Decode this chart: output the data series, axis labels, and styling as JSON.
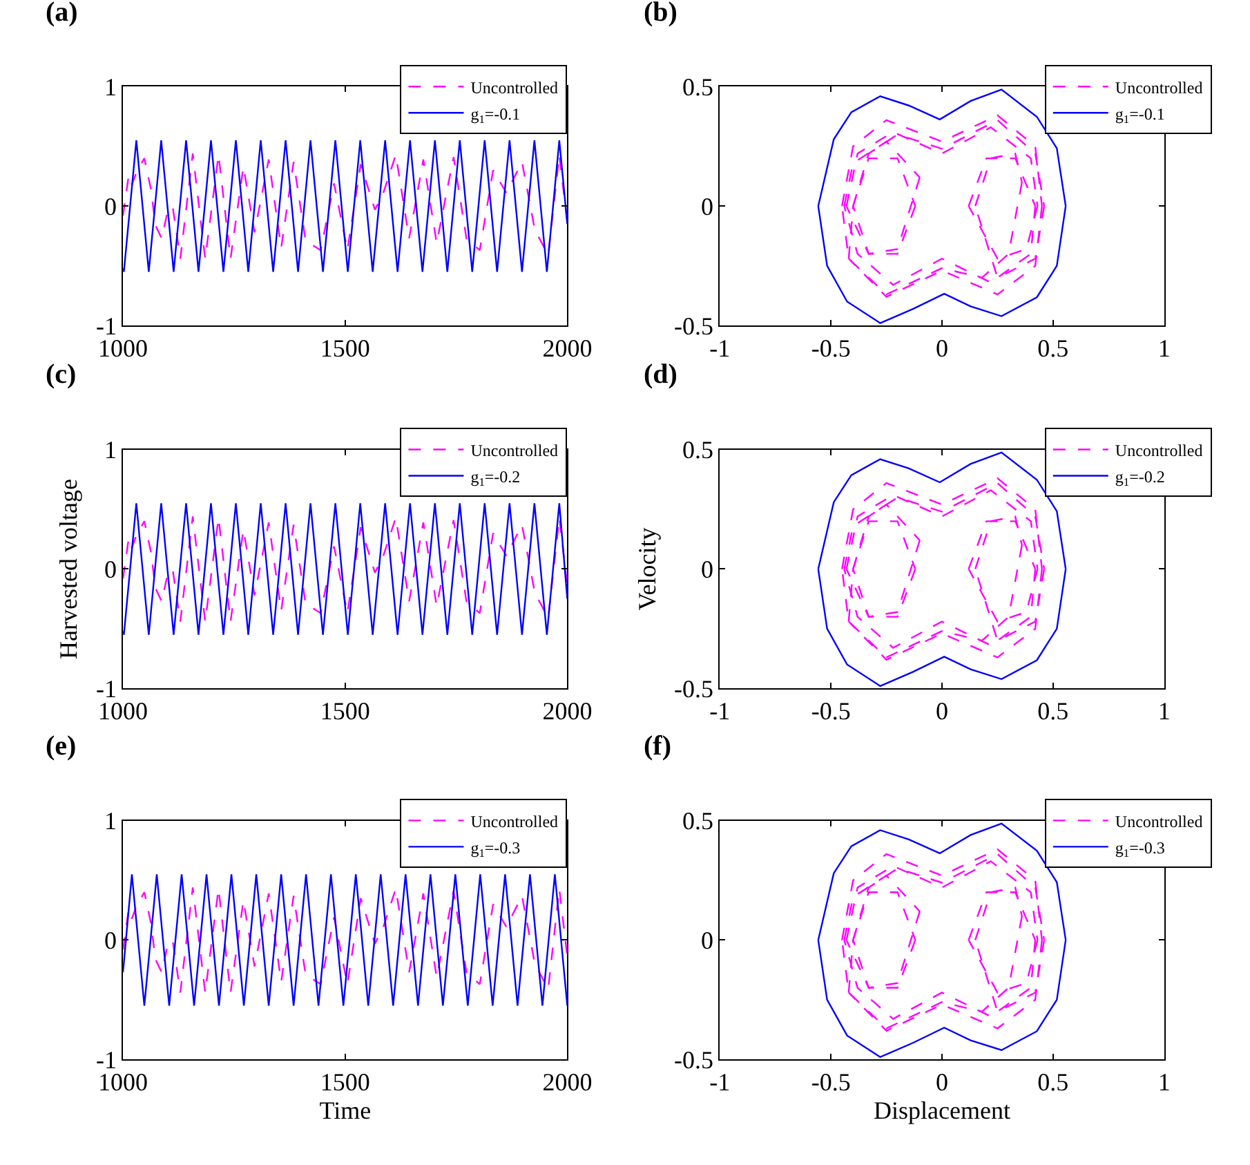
{
  "chart_data": [
    {
      "type": "line",
      "title": "(a)",
      "xlim": [
        1000,
        2000
      ],
      "xticks": [
        1000,
        1500,
        2000
      ],
      "ylim": [
        -1,
        1
      ],
      "yticks": [
        -1,
        0,
        1
      ],
      "legend": "top right",
      "grid": false,
      "series": [
        {
          "name": "Uncontrolled",
          "color": "#ff00ff",
          "line_style": "dashed",
          "x": [
            1000,
            1013,
            1020,
            1030,
            1048,
            1063,
            1073,
            1087,
            1102,
            1112,
            1129,
            1157,
            1185,
            1215,
            1242,
            1271,
            1296,
            1328,
            1356,
            1384,
            1411,
            1445,
            1475,
            1505,
            1535,
            1567,
            1586,
            1614,
            1644,
            1676,
            1706,
            1744,
            1773,
            1803,
            1833,
            1863,
            1898,
            1927,
            1957,
            1982,
            2000
          ],
          "values": [
            -0.08,
            0.26,
            0.18,
            0.28,
            0.4,
            0.14,
            -0.16,
            -0.27,
            -0.02,
            -0.01,
            -0.44,
            0.44,
            -0.44,
            0.43,
            -0.44,
            0.33,
            -0.22,
            0.39,
            -0.35,
            0.37,
            -0.29,
            -0.37,
            0.19,
            -0.37,
            0.35,
            -0.03,
            0.11,
            0.43,
            -0.27,
            0.39,
            -0.31,
            0.41,
            -0.27,
            -0.37,
            0.3,
            0.11,
            0.37,
            -0.2,
            -0.41,
            0.43,
            -0.14
          ]
        },
        {
          "name": "g$_{1}$=-0.1",
          "color": "#0000ff",
          "line_style": "solid",
          "x": [
            1000,
            1002,
            1030,
            1058,
            1086,
            1114,
            1142,
            1170,
            1198,
            1226,
            1254,
            1282,
            1310,
            1338,
            1366,
            1394,
            1422,
            1450,
            1478,
            1506,
            1534,
            1562,
            1590,
            1618,
            1646,
            1674,
            1702,
            1730,
            1758,
            1786,
            1814,
            1842,
            1870,
            1898,
            1926,
            1954,
            1982,
            2000
          ],
          "values": [
            -0.52,
            -0.55,
            0.55,
            -0.55,
            0.55,
            -0.55,
            0.55,
            -0.55,
            0.55,
            -0.55,
            0.55,
            -0.55,
            0.55,
            -0.55,
            0.55,
            -0.55,
            0.55,
            -0.55,
            0.55,
            -0.55,
            0.55,
            -0.55,
            0.55,
            -0.55,
            0.55,
            -0.55,
            0.55,
            -0.55,
            0.55,
            -0.55,
            0.55,
            -0.55,
            0.55,
            -0.55,
            0.55,
            -0.55,
            0.55,
            -0.15
          ]
        }
      ]
    },
    {
      "type": "line",
      "title": "(b)",
      "xlim": [
        -1,
        1
      ],
      "xticks": [
        -1,
        -0.5,
        0,
        0.5,
        1
      ],
      "ylim": [
        -0.5,
        0.5
      ],
      "yticks": [
        -0.5,
        0,
        0.5
      ],
      "legend": "top right",
      "grid": false,
      "series": [
        {
          "name": "Uncontrolled",
          "color": "#ff00ff",
          "line_style": "dashed",
          "x": [
            -0.45,
            -0.4,
            -0.25,
            0,
            0.25,
            0.42,
            0.45,
            0.42,
            0.25,
            0,
            -0.25,
            -0.42,
            -0.4,
            -0.33,
            -0.2,
            -0.12,
            -0.2,
            -0.33,
            -0.43,
            -0.38,
            -0.22,
            0,
            0.22,
            0.4,
            0.43,
            0.38,
            0.25,
            0.12,
            0.2,
            0.33,
            0.42,
            0.4,
            0.22,
            0,
            -0.22,
            -0.38,
            -0.44,
            -0.4,
            -0.25,
            -0.1,
            -0.2,
            -0.33,
            -0.4,
            -0.33,
            -0.2,
            0,
            0.25,
            0.42,
            0.46,
            0.42,
            0.25,
            0.15,
            0.22,
            0.33,
            0.36,
            0.3,
            0.18,
            0,
            -0.25,
            -0.42,
            -0.45
          ],
          "values": [
            0,
            0.25,
            0.36,
            0.27,
            0.38,
            0.25,
            0,
            -0.25,
            -0.37,
            -0.27,
            -0.38,
            -0.22,
            0,
            0.2,
            0.2,
            0,
            -0.2,
            -0.2,
            0,
            0.22,
            0.31,
            0.22,
            0.33,
            0.2,
            0,
            -0.18,
            -0.22,
            0,
            0.2,
            0.2,
            0,
            -0.2,
            -0.32,
            -0.22,
            -0.33,
            -0.2,
            0,
            0.18,
            0.27,
            0.12,
            -0.18,
            -0.2,
            0,
            0.22,
            0.3,
            0.24,
            0.36,
            0.22,
            0,
            -0.22,
            -0.3,
            0,
            0.2,
            0.22,
            0.1,
            -0.2,
            -0.3,
            -0.26,
            -0.37,
            -0.22,
            0
          ]
        },
        {
          "name": "g$_{1}$=-0.1",
          "color": "#0000ff",
          "line_style": "solid",
          "x": [
            -0.557,
            -0.487,
            -0.408,
            -0.278,
            -0.149,
            -0.01,
            0.129,
            0.268,
            0.427,
            0.517,
            0.557,
            0.517,
            0.427,
            0.268,
            0.129,
            0.01,
            -0.129,
            -0.278,
            -0.427,
            -0.517,
            -0.557
          ],
          "values": [
            0,
            0.28,
            0.393,
            0.46,
            0.421,
            0.363,
            0.44,
            0.488,
            0.374,
            0.242,
            0,
            -0.25,
            -0.382,
            -0.461,
            -0.42,
            -0.367,
            -0.43,
            -0.49,
            -0.4,
            -0.25,
            0
          ]
        }
      ]
    },
    {
      "type": "line",
      "title": "(c)",
      "ylabel": "Harvested voltage",
      "xlim": [
        1000,
        2000
      ],
      "xticks": [
        1000,
        1500,
        2000
      ],
      "ylim": [
        -1,
        1
      ],
      "yticks": [
        -1,
        0,
        1
      ],
      "legend": "top right",
      "grid": false,
      "series": [
        {
          "name": "Uncontrolled",
          "color": "#ff00ff",
          "line_style": "dashed",
          "x": [
            1000,
            1013,
            1020,
            1030,
            1048,
            1063,
            1073,
            1087,
            1102,
            1112,
            1129,
            1157,
            1185,
            1215,
            1242,
            1271,
            1296,
            1328,
            1356,
            1384,
            1411,
            1445,
            1475,
            1505,
            1535,
            1567,
            1586,
            1614,
            1644,
            1676,
            1706,
            1744,
            1773,
            1803,
            1833,
            1863,
            1898,
            1927,
            1957,
            1982,
            2000
          ],
          "values": [
            -0.08,
            0.26,
            0.18,
            0.28,
            0.4,
            0.14,
            -0.16,
            -0.27,
            -0.02,
            -0.01,
            -0.44,
            0.44,
            -0.44,
            0.43,
            -0.44,
            0.33,
            -0.22,
            0.39,
            -0.35,
            0.37,
            -0.29,
            -0.37,
            0.19,
            -0.37,
            0.35,
            -0.03,
            0.11,
            0.43,
            -0.27,
            0.39,
            -0.31,
            0.41,
            -0.27,
            -0.37,
            0.3,
            0.11,
            0.37,
            -0.2,
            -0.41,
            0.43,
            -0.14
          ]
        },
        {
          "name": "g$_{1}$=-0.2",
          "color": "#0000ff",
          "line_style": "solid",
          "x": [
            1000,
            1002,
            1030,
            1058,
            1086,
            1114,
            1142,
            1170,
            1198,
            1226,
            1254,
            1282,
            1310,
            1338,
            1366,
            1394,
            1422,
            1450,
            1478,
            1506,
            1534,
            1562,
            1590,
            1618,
            1646,
            1674,
            1702,
            1730,
            1758,
            1786,
            1814,
            1842,
            1870,
            1898,
            1926,
            1954,
            1982,
            2000
          ],
          "values": [
            -0.52,
            -0.55,
            0.55,
            -0.55,
            0.55,
            -0.55,
            0.55,
            -0.55,
            0.55,
            -0.55,
            0.55,
            -0.55,
            0.55,
            -0.55,
            0.55,
            -0.55,
            0.55,
            -0.55,
            0.55,
            -0.55,
            0.55,
            -0.55,
            0.55,
            -0.55,
            0.55,
            -0.55,
            0.55,
            -0.55,
            0.55,
            -0.55,
            0.55,
            -0.55,
            0.55,
            -0.55,
            0.55,
            -0.55,
            0.55,
            -0.25
          ]
        }
      ]
    },
    {
      "type": "line",
      "title": "(d)",
      "ylabel": "Velocity",
      "xlim": [
        -1,
        1
      ],
      "xticks": [
        -1,
        -0.5,
        0,
        0.5,
        1
      ],
      "ylim": [
        -0.5,
        0.5
      ],
      "yticks": [
        -0.5,
        0,
        0.5
      ],
      "legend": "top right",
      "grid": false,
      "series": [
        {
          "name": "Uncontrolled",
          "color": "#ff00ff",
          "line_style": "dashed",
          "x": [
            -0.45,
            -0.4,
            -0.25,
            0,
            0.25,
            0.42,
            0.45,
            0.42,
            0.25,
            0,
            -0.25,
            -0.42,
            -0.4,
            -0.33,
            -0.2,
            -0.12,
            -0.2,
            -0.33,
            -0.43,
            -0.38,
            -0.22,
            0,
            0.22,
            0.4,
            0.43,
            0.38,
            0.25,
            0.12,
            0.2,
            0.33,
            0.42,
            0.4,
            0.22,
            0,
            -0.22,
            -0.38,
            -0.44,
            -0.4,
            -0.25,
            -0.1,
            -0.2,
            -0.33,
            -0.4,
            -0.33,
            -0.2,
            0,
            0.25,
            0.42,
            0.46,
            0.42,
            0.25,
            0.15,
            0.22,
            0.33,
            0.36,
            0.3,
            0.18,
            0,
            -0.25,
            -0.42,
            -0.45
          ],
          "values": [
            0,
            0.25,
            0.36,
            0.27,
            0.38,
            0.25,
            0,
            -0.25,
            -0.37,
            -0.27,
            -0.38,
            -0.22,
            0,
            0.2,
            0.2,
            0,
            -0.2,
            -0.2,
            0,
            0.22,
            0.31,
            0.22,
            0.33,
            0.2,
            0,
            -0.18,
            -0.22,
            0,
            0.2,
            0.2,
            0,
            -0.2,
            -0.32,
            -0.22,
            -0.33,
            -0.2,
            0,
            0.18,
            0.27,
            0.12,
            -0.18,
            -0.2,
            0,
            0.22,
            0.3,
            0.24,
            0.36,
            0.22,
            0,
            -0.22,
            -0.3,
            0,
            0.2,
            0.22,
            0.1,
            -0.2,
            -0.3,
            -0.26,
            -0.37,
            -0.22,
            0
          ]
        },
        {
          "name": "g$_{1}$=-0.2",
          "color": "#0000ff",
          "line_style": "solid",
          "x": [
            -0.557,
            -0.487,
            -0.408,
            -0.278,
            -0.149,
            -0.01,
            0.129,
            0.268,
            0.427,
            0.517,
            0.557,
            0.517,
            0.427,
            0.268,
            0.129,
            0.01,
            -0.129,
            -0.278,
            -0.427,
            -0.517,
            -0.557
          ],
          "values": [
            0,
            0.28,
            0.393,
            0.46,
            0.421,
            0.363,
            0.44,
            0.488,
            0.374,
            0.242,
            0,
            -0.25,
            -0.382,
            -0.461,
            -0.42,
            -0.367,
            -0.43,
            -0.49,
            -0.4,
            -0.25,
            0
          ]
        }
      ]
    },
    {
      "type": "line",
      "title": "(e)",
      "xlabel": "Time",
      "xlim": [
        1000,
        2000
      ],
      "xticks": [
        1000,
        1500,
        2000
      ],
      "ylim": [
        -1,
        1
      ],
      "yticks": [
        -1,
        0,
        1
      ],
      "legend": "top right",
      "grid": false,
      "series": [
        {
          "name": "Uncontrolled",
          "color": "#ff00ff",
          "line_style": "dashed",
          "x": [
            1000,
            1013,
            1020,
            1030,
            1048,
            1063,
            1073,
            1087,
            1102,
            1112,
            1129,
            1157,
            1185,
            1215,
            1242,
            1271,
            1296,
            1328,
            1356,
            1384,
            1411,
            1445,
            1475,
            1505,
            1535,
            1567,
            1586,
            1614,
            1644,
            1676,
            1706,
            1744,
            1773,
            1803,
            1833,
            1863,
            1898,
            1927,
            1957,
            1982,
            2000
          ],
          "values": [
            -0.08,
            0.26,
            0.18,
            0.28,
            0.4,
            0.14,
            -0.16,
            -0.27,
            -0.02,
            -0.01,
            -0.44,
            0.44,
            -0.44,
            0.43,
            -0.44,
            0.33,
            -0.22,
            0.39,
            -0.35,
            0.37,
            -0.29,
            -0.37,
            0.19,
            -0.37,
            0.35,
            -0.03,
            0.11,
            0.43,
            -0.27,
            0.39,
            -0.31,
            0.41,
            -0.27,
            -0.37,
            0.3,
            0.11,
            0.37,
            -0.2,
            -0.41,
            0.43,
            -0.14
          ]
        },
        {
          "name": "g$_{1}$=-0.3",
          "color": "#0000ff",
          "line_style": "solid",
          "x": [
            1000,
            1020,
            1048,
            1076,
            1104,
            1132,
            1160,
            1188,
            1216,
            1244,
            1272,
            1300,
            1328,
            1356,
            1384,
            1412,
            1440,
            1468,
            1496,
            1524,
            1552,
            1580,
            1608,
            1636,
            1664,
            1692,
            1720,
            1748,
            1776,
            1804,
            1832,
            1860,
            1888,
            1916,
            1944,
            1972,
            2000
          ],
          "values": [
            -0.27,
            0.55,
            -0.55,
            0.55,
            -0.55,
            0.55,
            -0.55,
            0.55,
            -0.55,
            0.55,
            -0.55,
            0.55,
            -0.55,
            0.55,
            -0.55,
            0.55,
            -0.55,
            0.55,
            -0.55,
            0.55,
            -0.55,
            0.55,
            -0.55,
            0.55,
            -0.55,
            0.55,
            -0.55,
            0.55,
            -0.55,
            0.55,
            -0.55,
            0.55,
            -0.55,
            0.55,
            -0.55,
            0.55,
            -0.55
          ]
        }
      ]
    },
    {
      "type": "line",
      "title": "(f)",
      "xlabel": "Displacement",
      "xlim": [
        -1,
        1
      ],
      "xticks": [
        -1,
        -0.5,
        0,
        0.5,
        1
      ],
      "ylim": [
        -0.5,
        0.5
      ],
      "yticks": [
        -0.5,
        0,
        0.5
      ],
      "legend": "top right",
      "grid": false,
      "series": [
        {
          "name": "Uncontrolled",
          "color": "#ff00ff",
          "line_style": "dashed",
          "x": [
            -0.45,
            -0.4,
            -0.25,
            0,
            0.25,
            0.42,
            0.45,
            0.42,
            0.25,
            0,
            -0.25,
            -0.42,
            -0.4,
            -0.33,
            -0.2,
            -0.12,
            -0.2,
            -0.33,
            -0.43,
            -0.38,
            -0.22,
            0,
            0.22,
            0.4,
            0.43,
            0.38,
            0.25,
            0.12,
            0.2,
            0.33,
            0.42,
            0.4,
            0.22,
            0,
            -0.22,
            -0.38,
            -0.44,
            -0.4,
            -0.25,
            -0.1,
            -0.2,
            -0.33,
            -0.4,
            -0.33,
            -0.2,
            0,
            0.25,
            0.42,
            0.46,
            0.42,
            0.25,
            0.15,
            0.22,
            0.33,
            0.36,
            0.3,
            0.18,
            0,
            -0.25,
            -0.42,
            -0.45
          ],
          "values": [
            0,
            0.25,
            0.36,
            0.27,
            0.38,
            0.25,
            0,
            -0.25,
            -0.37,
            -0.27,
            -0.38,
            -0.22,
            0,
            0.2,
            0.2,
            0,
            -0.2,
            -0.2,
            0,
            0.22,
            0.31,
            0.22,
            0.33,
            0.2,
            0,
            -0.18,
            -0.22,
            0,
            0.2,
            0.2,
            0,
            -0.2,
            -0.32,
            -0.22,
            -0.33,
            -0.2,
            0,
            0.18,
            0.27,
            0.12,
            -0.18,
            -0.2,
            0,
            0.22,
            0.3,
            0.24,
            0.36,
            0.22,
            0,
            -0.22,
            -0.3,
            0,
            0.2,
            0.22,
            0.1,
            -0.2,
            -0.3,
            -0.26,
            -0.37,
            -0.22,
            0
          ]
        },
        {
          "name": "g$_{1}$=-0.3",
          "color": "#0000ff",
          "line_style": "solid",
          "x": [
            -0.557,
            -0.487,
            -0.408,
            -0.278,
            -0.149,
            -0.01,
            0.129,
            0.268,
            0.427,
            0.517,
            0.557,
            0.517,
            0.427,
            0.268,
            0.129,
            0.01,
            -0.129,
            -0.278,
            -0.427,
            -0.517,
            -0.557
          ],
          "values": [
            0,
            0.28,
            0.393,
            0.46,
            0.421,
            0.363,
            0.44,
            0.488,
            0.374,
            0.242,
            0,
            -0.25,
            -0.382,
            -0.461,
            -0.42,
            -0.367,
            -0.43,
            -0.49,
            -0.4,
            -0.25,
            0
          ]
        }
      ]
    }
  ]
}
